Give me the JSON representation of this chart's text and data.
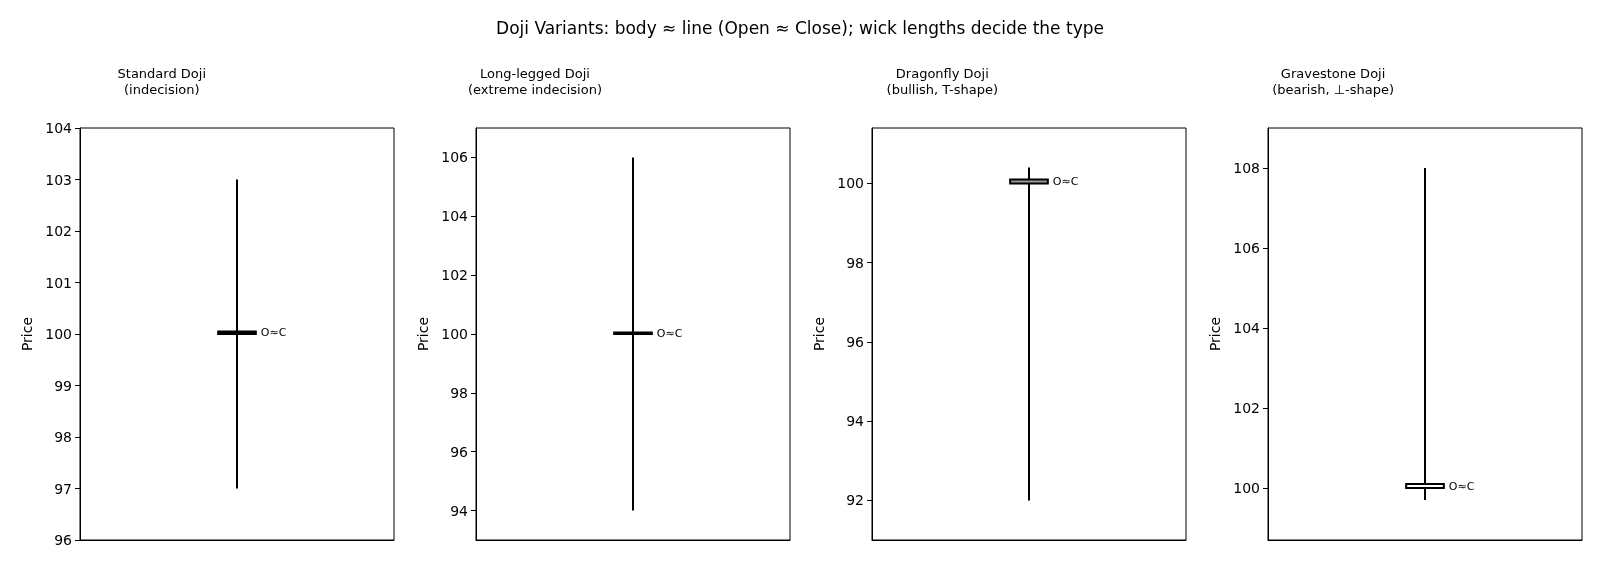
{
  "chart_data": [
    {
      "type": "candlestick",
      "title": "Standard Doji\n(indecision)",
      "ylabel": "Price",
      "categories": [
        null
      ],
      "ohlc": [
        [
          100.05,
          103,
          97,
          100
        ]
      ],
      "value_labels": [
        "O≈C"
      ],
      "color": "#000000",
      "ylim": [
        96,
        104
      ],
      "yticks": [
        96,
        97,
        98,
        99,
        100,
        101,
        102,
        103,
        104
      ],
      "tick_labels": "y",
      "annotations": [
        "Doji Variants: body ≈ line (Open ≈ Close); wick lengths decide the type"
      ]
    },
    {
      "type": "candlestick",
      "title": "Long-legged Doji\n(extreme indecision)",
      "ylabel": "Price",
      "categories": [
        null
      ],
      "ohlc": [
        [
          100.05,
          106,
          94,
          100
        ]
      ],
      "value_labels": [
        "O≈C"
      ],
      "color": "#000000",
      "ylim": [
        93,
        107
      ],
      "yticks": [
        94,
        96,
        98,
        100,
        102,
        104,
        106
      ],
      "tick_labels": "y"
    },
    {
      "type": "candlestick",
      "title": "Dragonfly Doji\n(bullish, T-shape)",
      "ylabel": "Price",
      "categories": [
        null
      ],
      "ohlc": [
        [
          100,
          100.4,
          92,
          100.1
        ]
      ],
      "value_labels": [
        "O≈C"
      ],
      "color": "#999999",
      "ylim": [
        91,
        101.4
      ],
      "yticks": [
        92,
        94,
        96,
        98,
        100
      ],
      "tick_labels": "y"
    },
    {
      "type": "candlestick",
      "title": "Gravestone Doji\n(bearish, ⊥-shape)",
      "ylabel": "Price",
      "categories": [
        null
      ],
      "ohlc": [
        [
          100,
          108,
          99.7,
          100.1
        ]
      ],
      "value_labels": [
        "O≈C"
      ],
      "color": "#ffffff",
      "ylim": [
        98.7,
        109
      ],
      "yticks": [
        100,
        102,
        104,
        106,
        108
      ],
      "tick_labels": "y"
    }
  ]
}
